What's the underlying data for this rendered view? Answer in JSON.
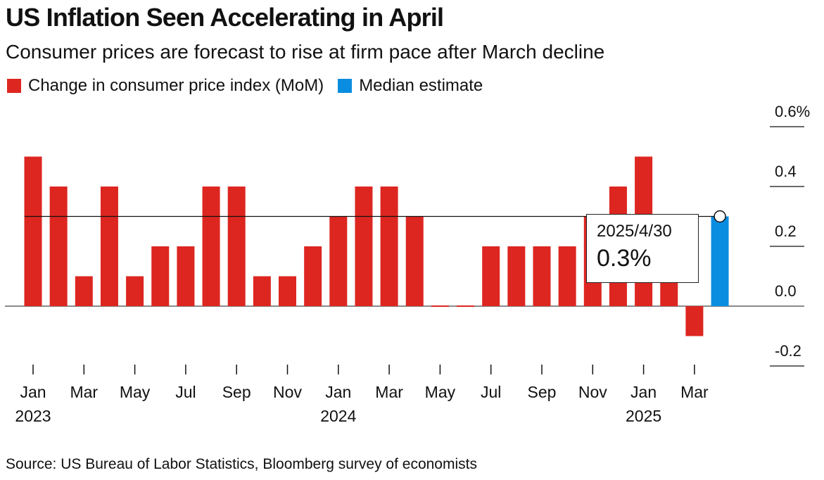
{
  "colors": {
    "actual": "#dd2620",
    "estimate": "#0a8de0",
    "text": "#111111",
    "gridline": "#111111"
  },
  "chart_data": {
    "type": "bar",
    "title": "US Inflation Seen Accelerating in April",
    "subtitle": "Consumer prices are forecast to rise at firm pace after March decline",
    "xlabel": "",
    "ylabel": "",
    "ylim": [
      -0.2,
      0.6
    ],
    "y_ticks": [
      "0.6%",
      "0.4",
      "0.2",
      "0.0",
      "-0.2"
    ],
    "y_tick_values": [
      0.6,
      0.4,
      0.2,
      0.0,
      -0.2
    ],
    "y_axis_side": "right",
    "legend_position": "top-left",
    "reference_line": 0.3,
    "categories": [
      "2023-01",
      "2023-02",
      "2023-03",
      "2023-04",
      "2023-05",
      "2023-06",
      "2023-07",
      "2023-08",
      "2023-09",
      "2023-10",
      "2023-11",
      "2023-12",
      "2024-01",
      "2024-02",
      "2024-03",
      "2024-04",
      "2024-05",
      "2024-06",
      "2024-07",
      "2024-08",
      "2024-09",
      "2024-10",
      "2024-11",
      "2024-12",
      "2025-01",
      "2025-02",
      "2025-03",
      "2025-04"
    ],
    "series": [
      {
        "name": "Change in consumer price index (MoM)",
        "color": "#dd2620",
        "values": [
          0.5,
          0.4,
          0.1,
          0.4,
          0.1,
          0.2,
          0.2,
          0.4,
          0.4,
          0.1,
          0.1,
          0.2,
          0.3,
          0.4,
          0.4,
          0.3,
          0.0,
          0.0,
          0.2,
          0.2,
          0.2,
          0.2,
          0.3,
          0.4,
          0.5,
          0.2,
          -0.1,
          null
        ]
      },
      {
        "name": "Median estimate",
        "color": "#0a8de0",
        "values": [
          null,
          null,
          null,
          null,
          null,
          null,
          null,
          null,
          null,
          null,
          null,
          null,
          null,
          null,
          null,
          null,
          null,
          null,
          null,
          null,
          null,
          null,
          null,
          null,
          null,
          null,
          null,
          0.3
        ]
      }
    ],
    "x_tick_labels": [
      {
        "index": 0,
        "month": "Jan",
        "year": "2023"
      },
      {
        "index": 2,
        "month": "Mar",
        "year": ""
      },
      {
        "index": 4,
        "month": "May",
        "year": ""
      },
      {
        "index": 6,
        "month": "Jul",
        "year": ""
      },
      {
        "index": 8,
        "month": "Sep",
        "year": ""
      },
      {
        "index": 10,
        "month": "Nov",
        "year": ""
      },
      {
        "index": 12,
        "month": "Jan",
        "year": "2024"
      },
      {
        "index": 14,
        "month": "Mar",
        "year": ""
      },
      {
        "index": 16,
        "month": "May",
        "year": ""
      },
      {
        "index": 18,
        "month": "Jul",
        "year": ""
      },
      {
        "index": 20,
        "month": "Sep",
        "year": ""
      },
      {
        "index": 22,
        "month": "Nov",
        "year": ""
      },
      {
        "index": 24,
        "month": "Jan",
        "year": "2025"
      },
      {
        "index": 26,
        "month": "Mar",
        "year": ""
      }
    ],
    "tooltip": {
      "date": "2025/4/30",
      "value": "0.3%"
    }
  },
  "footer": {
    "source": "Source: US Bureau of Labor Statistics, Bloomberg survey of economists"
  }
}
